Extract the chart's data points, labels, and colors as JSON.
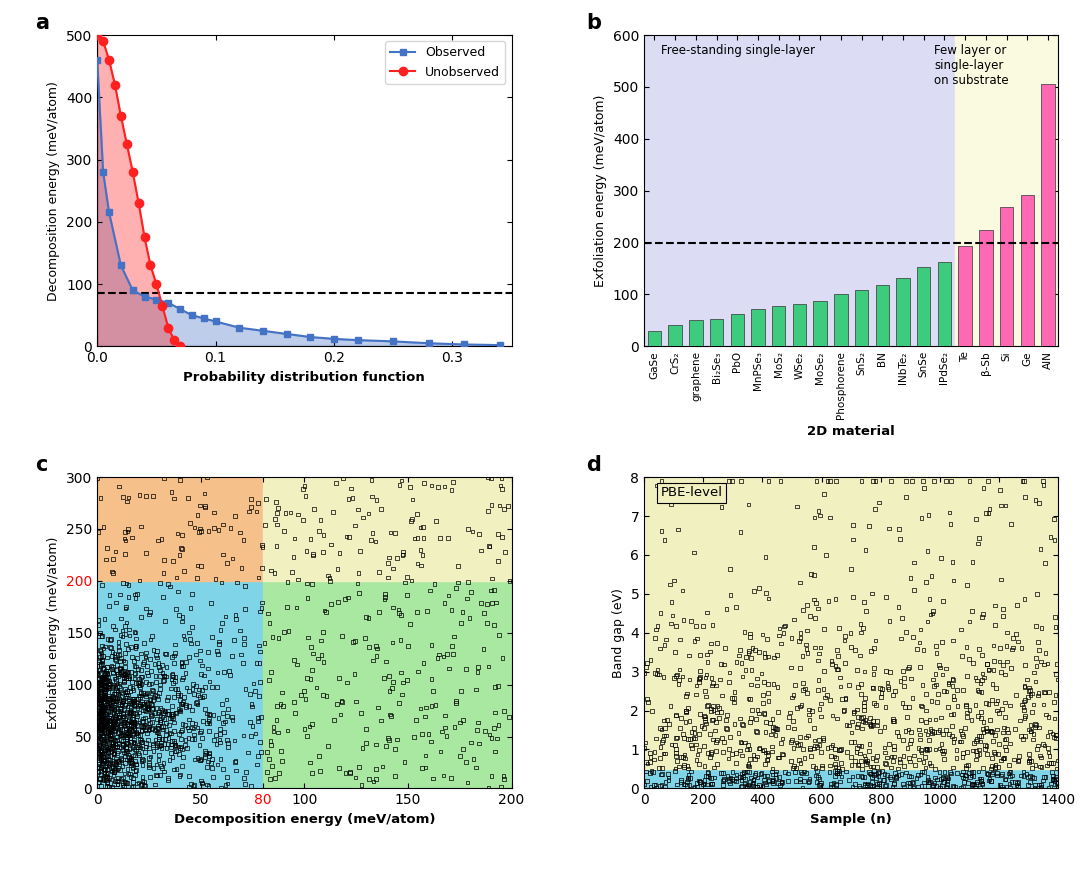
{
  "panel_a": {
    "xlabel": "Probability distribution function",
    "ylabel": "Decomposition energy (meV/atom)",
    "dashed_line_y": 85,
    "observed_x": [
      0.0,
      0.005,
      0.01,
      0.02,
      0.03,
      0.04,
      0.05,
      0.06,
      0.07,
      0.08,
      0.09,
      0.1,
      0.12,
      0.14,
      0.16,
      0.18,
      0.2,
      0.22,
      0.25,
      0.28,
      0.31,
      0.34
    ],
    "observed_y": [
      460,
      280,
      215,
      130,
      90,
      80,
      75,
      70,
      60,
      50,
      45,
      40,
      30,
      25,
      20,
      15,
      12,
      10,
      8,
      5,
      3,
      2
    ],
    "unobserved_x": [
      0.0,
      0.005,
      0.01,
      0.015,
      0.02,
      0.025,
      0.03,
      0.035,
      0.04,
      0.045,
      0.05,
      0.055,
      0.06,
      0.065,
      0.07
    ],
    "unobserved_y": [
      500,
      490,
      460,
      420,
      370,
      325,
      280,
      230,
      175,
      130,
      100,
      65,
      30,
      10,
      0
    ],
    "observed_color": "#4472C4",
    "unobserved_color": "#FF2020",
    "xlim": [
      0,
      0.35
    ],
    "ylim": [
      0,
      500
    ]
  },
  "panel_b": {
    "xlabel": "2D material",
    "ylabel": "Exfoliation energy (meV/atom)",
    "dashed_line_y": 200,
    "categories_green": [
      "GaSe",
      "CrS₂",
      "graphene",
      "Bi₂Se₃",
      "PbO",
      "MnPSe₃",
      "MoS₂",
      "WSe₂",
      "MoSe₂",
      "Phosphorene",
      "SnS₂",
      "BN",
      "INbTe₂",
      "SnSe",
      "IPdSe₂"
    ],
    "values_green": [
      30,
      42,
      50,
      52,
      62,
      72,
      78,
      82,
      88,
      100,
      108,
      118,
      132,
      152,
      162
    ],
    "categories_pink": [
      "Te",
      "β-Sb",
      "Si",
      "Ge",
      "AlN"
    ],
    "values_pink": [
      193,
      225,
      268,
      292,
      505
    ],
    "green_color": "#3DCC7E",
    "pink_color": "#FF69B4",
    "bg_blue": "#DCDCF5",
    "bg_yellow": "#FAFAE0",
    "ylim": [
      0,
      600
    ]
  },
  "panel_c": {
    "xlabel": "Decomposition energy (meV/atom)",
    "ylabel": "Exfoliation energy (meV/atom)",
    "xlim": [
      0,
      200
    ],
    "ylim": [
      0,
      300
    ],
    "threshold_x": 80,
    "threshold_y": 200,
    "bg_cyan": "#7FD4E8",
    "bg_orange": "#F5C08A",
    "bg_green": "#A8E8A0",
    "bg_yellow": "#F0F0C0",
    "seed": 42
  },
  "panel_d": {
    "xlabel": "Sample (n)",
    "ylabel": "Band gap (eV)",
    "annotation": "PBE-level",
    "xlim": [
      0,
      1400
    ],
    "ylim": [
      0,
      8.0
    ],
    "threshold_y": 0.5,
    "bg_cyan": "#7FD4E8",
    "bg_yellow": "#F0F0C0",
    "n_samples": 1380,
    "seed": 99
  }
}
